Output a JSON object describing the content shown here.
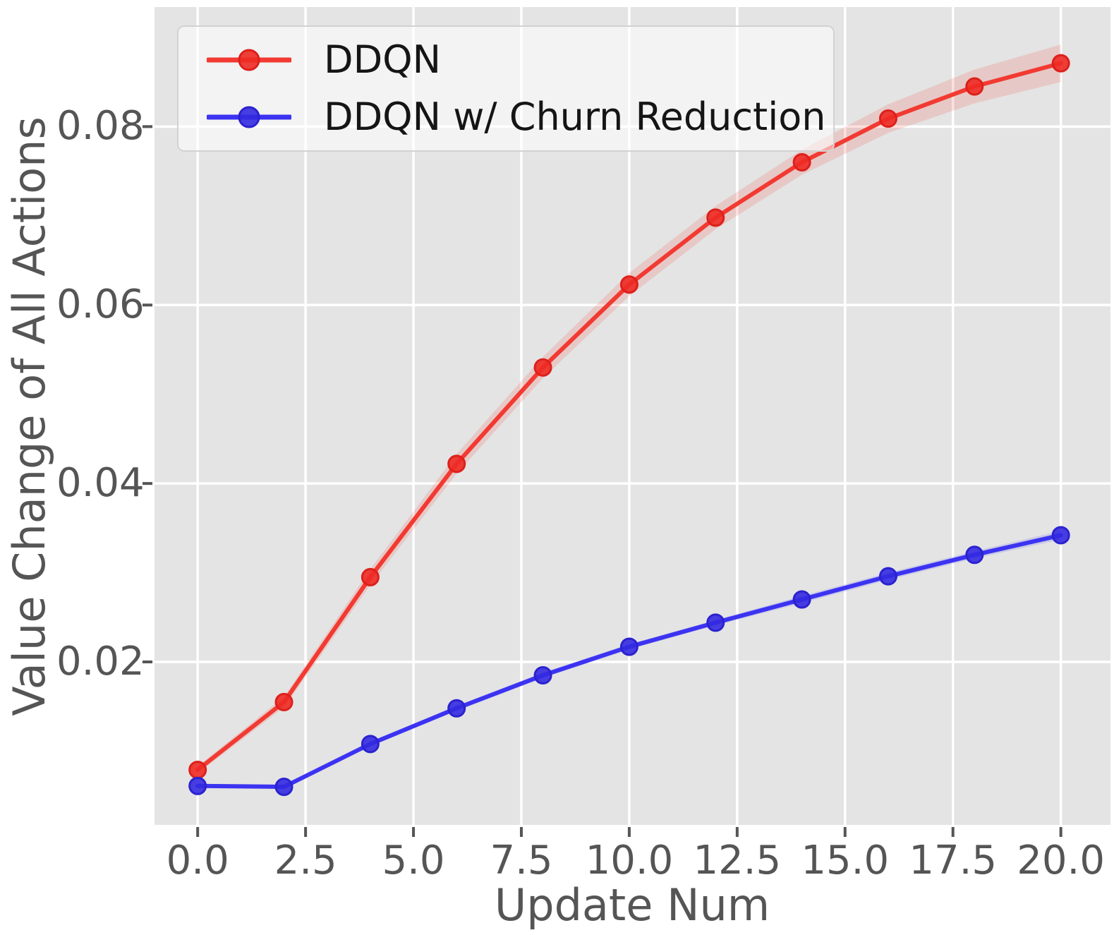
{
  "style": {
    "figure_background": "#ffffff",
    "plot_background": "#e4e4e4",
    "grid_color": "#ffffff",
    "tick_mark_color": "#555555",
    "tick_label_color": "#555555",
    "axis_label_color": "#555555",
    "legend_background": "rgba(255,255,255,0.55)",
    "legend_border_color": "#d2d2d2",
    "legend_text_color": "#151515"
  },
  "chart_data": {
    "type": "line",
    "title": "",
    "xlabel": "Update Num",
    "ylabel": "Value Change of All Actions",
    "x": [
      0,
      2,
      4,
      6,
      8,
      10,
      12,
      14,
      16,
      18,
      20
    ],
    "series": [
      {
        "name": "DDQN",
        "line_color": "#f23a32",
        "marker_color": "#ee2a23",
        "marker_edge_color": "#dd201b",
        "band_color": "rgba(240,60,52,0.16)",
        "values": [
          0.0079,
          0.0155,
          0.0295,
          0.0422,
          0.053,
          0.0623,
          0.0698,
          0.076,
          0.0809,
          0.0845,
          0.0871
        ],
        "band_halfwidth": [
          0.0004,
          0.0006,
          0.0009,
          0.0011,
          0.0012,
          0.0013,
          0.0013,
          0.0014,
          0.0016,
          0.0019,
          0.0021
        ]
      },
      {
        "name": "DDQN w/ Churn Reduction",
        "line_color": "#3c33f2",
        "marker_color": "#3329e0",
        "marker_edge_color": "#2b22cf",
        "band_color": "rgba(70,60,242,0.16)",
        "values": [
          0.0061,
          0.006,
          0.0108,
          0.0148,
          0.0185,
          0.0217,
          0.0244,
          0.027,
          0.0296,
          0.032,
          0.0342
        ],
        "band_halfwidth": [
          0.0001,
          0.0002,
          0.0002,
          0.0003,
          0.0003,
          0.0003,
          0.0003,
          0.0004,
          0.0004,
          0.0004,
          0.0005
        ]
      }
    ],
    "xlim": [
      -1.0,
      21.15
    ],
    "ylim": [
      0.00173,
      0.0934
    ],
    "xticks": {
      "values": [
        0,
        2.5,
        5,
        7.5,
        10,
        12.5,
        15,
        17.5,
        20
      ],
      "labels": [
        "0.0",
        "2.5",
        "5.0",
        "7.5",
        "10.0",
        "12.5",
        "15.0",
        "17.5",
        "20.0"
      ]
    },
    "yticks": {
      "values": [
        0.02,
        0.04,
        0.06,
        0.08
      ],
      "labels": [
        "0.02",
        "0.04",
        "0.06",
        "0.08"
      ]
    },
    "grid": true,
    "legend_position": "upper left"
  }
}
